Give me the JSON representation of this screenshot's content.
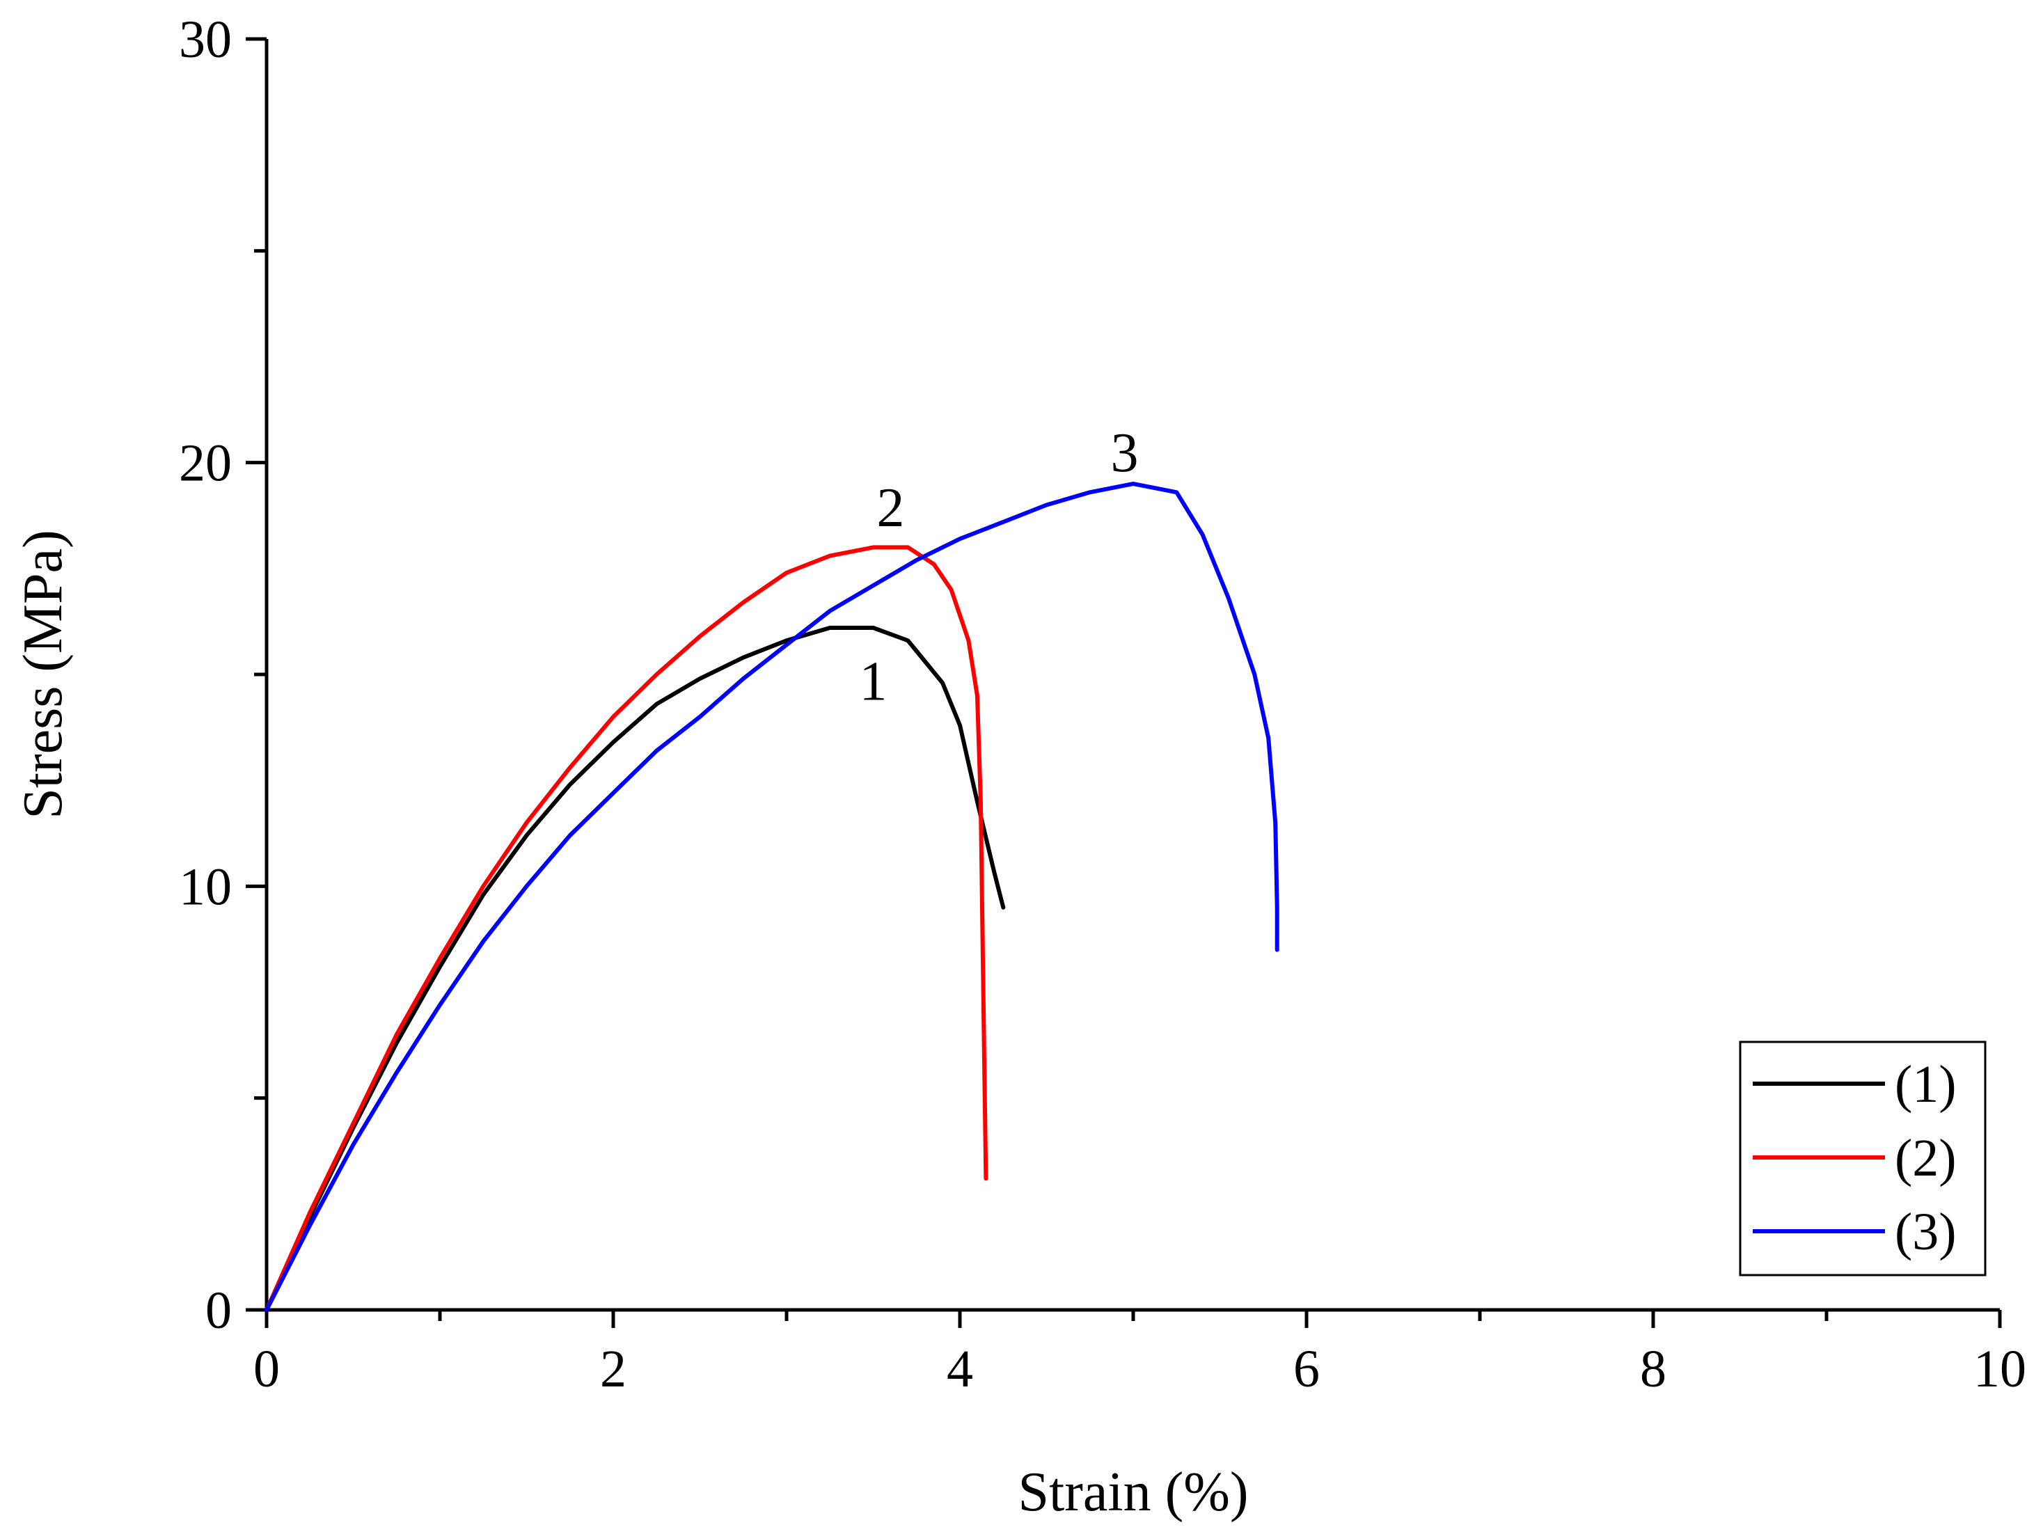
{
  "chart_data": {
    "type": "line",
    "title": "",
    "xlabel": "Strain (%)",
    "ylabel": "Stress (MPa)",
    "xlim": [
      0,
      10
    ],
    "ylim": [
      0,
      30
    ],
    "x_ticks": [
      0,
      2,
      4,
      6,
      8,
      10
    ],
    "y_ticks": [
      0,
      10,
      20,
      30
    ],
    "x_tick_labels": [
      "0",
      "2",
      "4",
      "6",
      "8",
      "10"
    ],
    "y_tick_labels": [
      "0",
      "10",
      "20",
      "30"
    ],
    "grid": false,
    "legend_position": "bottom-right",
    "series": [
      {
        "name": "(1)",
        "curve_label": "1",
        "color": "#000000",
        "label_at": [
          3.5,
          14.4
        ],
        "x": [
          0,
          0.25,
          0.5,
          0.75,
          1.0,
          1.25,
          1.5,
          1.75,
          2.0,
          2.25,
          2.5,
          2.75,
          3.0,
          3.25,
          3.5,
          3.7,
          3.9,
          4.0,
          4.1,
          4.2,
          4.25
        ],
        "y": [
          0,
          2.2,
          4.3,
          6.3,
          8.1,
          9.8,
          11.2,
          12.4,
          13.4,
          14.3,
          14.9,
          15.4,
          15.8,
          16.1,
          16.1,
          15.8,
          14.8,
          13.8,
          12.0,
          10.3,
          9.5
        ]
      },
      {
        "name": "(2)",
        "curve_label": "2",
        "color": "#ff0000",
        "label_at": [
          3.6,
          18.5
        ],
        "x": [
          0,
          0.25,
          0.5,
          0.75,
          1.0,
          1.25,
          1.5,
          1.75,
          2.0,
          2.25,
          2.5,
          2.75,
          3.0,
          3.25,
          3.5,
          3.7,
          3.85,
          3.95,
          4.05,
          4.1,
          4.12,
          4.13,
          4.14,
          4.15
        ],
        "y": [
          0,
          2.3,
          4.4,
          6.5,
          8.3,
          10.0,
          11.5,
          12.8,
          14.0,
          15.0,
          15.9,
          16.7,
          17.4,
          17.8,
          18.0,
          18.0,
          17.6,
          17.0,
          15.8,
          14.5,
          12.0,
          9.0,
          6.0,
          3.1
        ]
      },
      {
        "name": "(3)",
        "curve_label": "3",
        "color": "#0000ff",
        "label_at": [
          4.95,
          19.8
        ],
        "x": [
          0,
          0.25,
          0.5,
          0.75,
          1.0,
          1.25,
          1.5,
          1.75,
          2.0,
          2.25,
          2.5,
          2.75,
          3.0,
          3.25,
          3.5,
          3.75,
          4.0,
          4.25,
          4.5,
          4.75,
          5.0,
          5.25,
          5.4,
          5.55,
          5.7,
          5.78,
          5.82,
          5.83,
          5.83
        ],
        "y": [
          0,
          2.0,
          3.9,
          5.6,
          7.2,
          8.7,
          10.0,
          11.2,
          12.2,
          13.2,
          14.0,
          14.9,
          15.7,
          16.5,
          17.1,
          17.7,
          18.2,
          18.6,
          19.0,
          19.3,
          19.5,
          19.3,
          18.3,
          16.8,
          15.0,
          13.5,
          11.5,
          9.5,
          8.5
        ]
      }
    ]
  }
}
